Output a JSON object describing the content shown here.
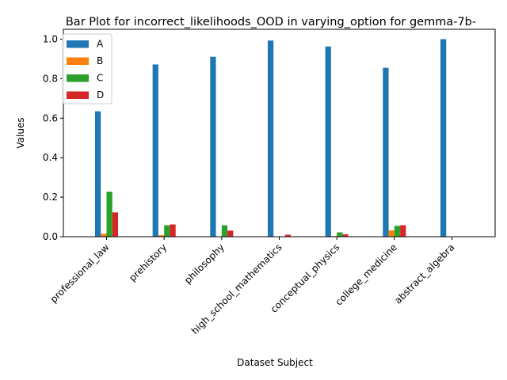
{
  "chart_data": {
    "type": "bar",
    "title": "Bar Plot for incorrect_likelihoods_OOD in varying_option for gemma-7b-",
    "xlabel": "Dataset Subject",
    "ylabel": "Values",
    "ylim": [
      0,
      1.05
    ],
    "yticks": [
      "0.0",
      "0.2",
      "0.4",
      "0.6",
      "0.8",
      "1.0"
    ],
    "categories": [
      "professional_law",
      "prehistory",
      "philosophy",
      "high_school_mathematics",
      "conceptual_physics",
      "college_medicine",
      "abstract_algebra"
    ],
    "series": [
      {
        "name": "A",
        "color": "#1f77b4",
        "values": [
          0.635,
          0.872,
          0.911,
          0.993,
          0.963,
          0.855,
          1.0
        ]
      },
      {
        "name": "B",
        "color": "#ff7f0e",
        "values": [
          0.015,
          0.008,
          0.0,
          0.0,
          0.003,
          0.032,
          0.0
        ]
      },
      {
        "name": "C",
        "color": "#2ca02c",
        "values": [
          0.228,
          0.058,
          0.058,
          0.0,
          0.022,
          0.055,
          0.0
        ]
      },
      {
        "name": "D",
        "color": "#d62728",
        "values": [
          0.123,
          0.062,
          0.031,
          0.01,
          0.012,
          0.058,
          0.0
        ]
      }
    ],
    "legend": "top-left",
    "grid": false
  }
}
